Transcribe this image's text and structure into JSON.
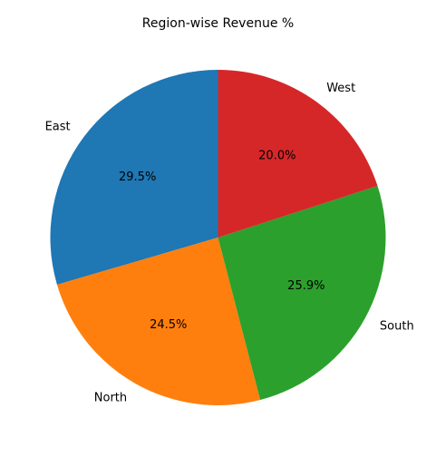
{
  "chart_data": {
    "type": "pie",
    "title": "Region-wise Revenue %",
    "labels": [
      "East",
      "North",
      "South",
      "West"
    ],
    "values": [
      29.5,
      24.5,
      25.9,
      20.0
    ],
    "percent_labels": [
      "29.5%",
      "24.5%",
      "25.9%",
      "20.0%"
    ],
    "colors": [
      "#1f77b4",
      "#ff7f0e",
      "#2ca02c",
      "#d62728"
    ],
    "start_angle_deg": 90,
    "direction": "counterclockwise",
    "legend": "none"
  }
}
